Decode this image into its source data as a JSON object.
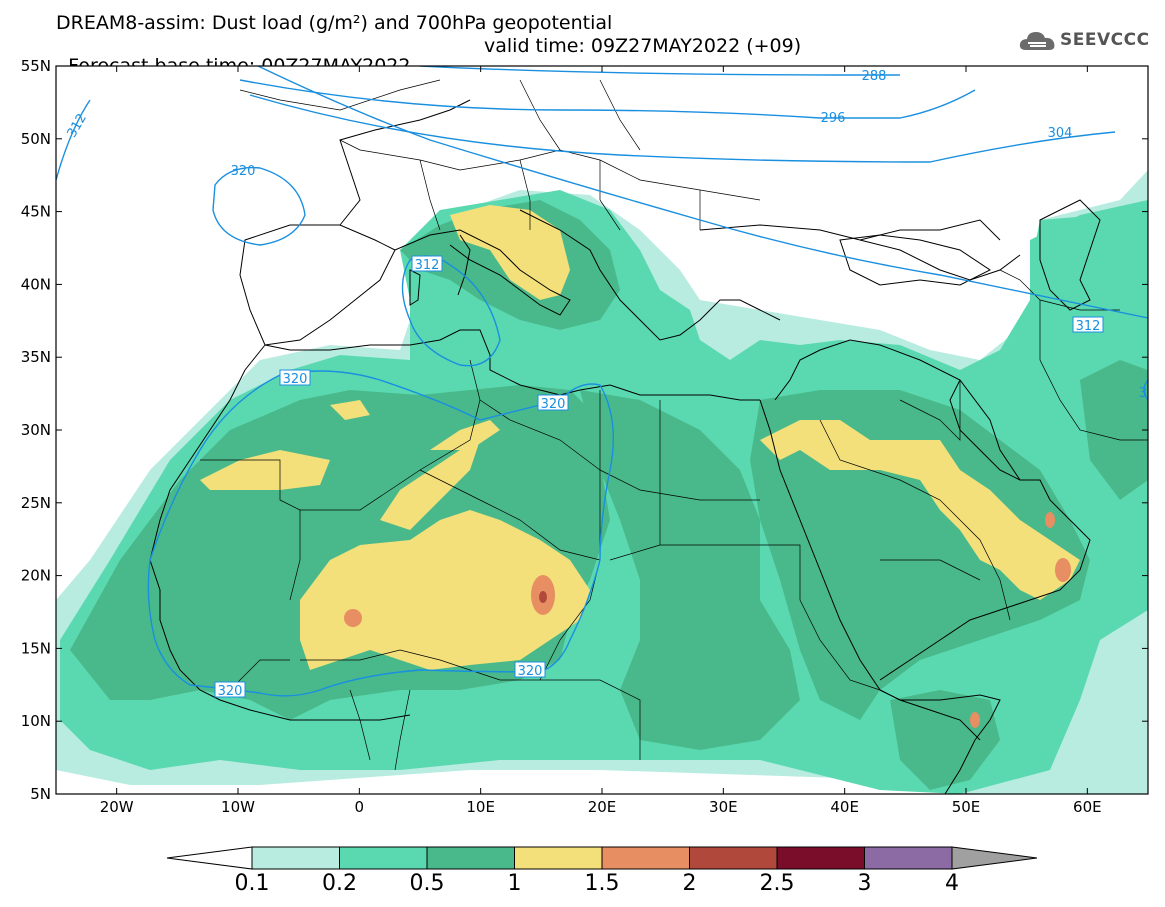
{
  "title": {
    "line1": "DREAM8-assim: Dust load (g/m²) and 700hPa geopotential",
    "base_time": "Forecast base time: 00Z27MAY2022",
    "valid_time": "valid time: 09Z27MAY2022 (+09)"
  },
  "logo": {
    "icon": "cloud-icon",
    "text": "SEEVCCC"
  },
  "map": {
    "projection": "lat-lon",
    "lon_range": [
      -25,
      65
    ],
    "lat_range": [
      5,
      55
    ],
    "lat_ticks": [
      "55N",
      "50N",
      "45N",
      "40N",
      "35N",
      "30N",
      "25N",
      "20N",
      "15N",
      "10N",
      "5N"
    ],
    "lon_ticks": [
      "20W",
      "10W",
      "0",
      "10E",
      "20E",
      "30E",
      "40E",
      "50E",
      "60E"
    ],
    "contour_labels": [
      "288",
      "296",
      "304",
      "312",
      "312",
      "312",
      "320",
      "320",
      "320",
      "320",
      "320",
      "3"
    ],
    "contour_color": "#1a8fe0"
  },
  "colorbar": {
    "labels": [
      "0.1",
      "0.2",
      "0.5",
      "1",
      "1.5",
      "2",
      "2.5",
      "3",
      "4"
    ],
    "colors": [
      "#ffffff",
      "#b9ece0",
      "#5ad9b0",
      "#49b98b",
      "#f3e07a",
      "#e78e62",
      "#b0493b",
      "#7a0e2a",
      "#8c6aa3",
      "#a0a0a0"
    ]
  }
}
